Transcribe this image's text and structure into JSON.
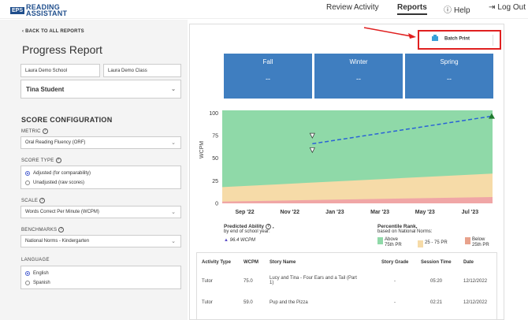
{
  "header": {
    "logo_mark": "EPS",
    "logo_line1": "READING",
    "logo_line2": "ASSISTANT",
    "nav": [
      {
        "label": "Review Activity"
      },
      {
        "label": "Reports"
      },
      {
        "label": "Help"
      },
      {
        "label": "Log Out"
      }
    ]
  },
  "sidebar": {
    "back_link": "BACK TO ALL REPORTS",
    "page_title": "Progress Report",
    "school": "Laura Demo School",
    "class": "Laura Demo Class",
    "student": "Tina Student",
    "section_title": "SCORE CONFIGURATION",
    "metric_label": "METRIC",
    "metric_value": "Oral Reading Fluency (ORF)",
    "score_type_label": "SCORE TYPE",
    "score_type_options": [
      "Adjusted (for comparability)",
      "Unadjusted (raw scores)"
    ],
    "scale_label": "SCALE",
    "scale_value": "Words Correct Per Minute (WCPM)",
    "benchmarks_label": "BENCHMARKS",
    "benchmarks_value": "National Norms - Kindergarten",
    "language_label": "LANGUAGE",
    "language_options": [
      "English",
      "Spanish"
    ]
  },
  "main": {
    "batch_print": "Batch Print",
    "seasons": [
      {
        "name": "Fall",
        "value": "--"
      },
      {
        "name": "Winter",
        "value": "--"
      },
      {
        "name": "Spring",
        "value": "--"
      }
    ],
    "predicted": {
      "title": "Predicted Ability",
      "comma": ",",
      "subtitle": "by end of school year:",
      "value": "96.4 WCPM"
    },
    "percentile": {
      "title": "Percentile Rank,",
      "subtitle": "based on National Norms:",
      "bands": [
        {
          "label_1": "Above",
          "label_2": "75th PR"
        },
        {
          "label_1": "25 - 75 PR",
          "label_2": ""
        },
        {
          "label_1": "Below",
          "label_2": "25th PR"
        }
      ]
    },
    "table": {
      "headers": [
        "Activity Type",
        "WCPM",
        "Story Name",
        "Story Grade",
        "Session Time",
        "Date"
      ],
      "rows": [
        {
          "activity": "Tutor",
          "wcpm": "75.0",
          "story_1": "Lucy and Tina - Four Ears and a Tail (Part",
          "story_2": "1)",
          "grade": "-",
          "time": "05:20",
          "date": "12/12/2022"
        },
        {
          "activity": "Tutor",
          "wcpm": "59.0",
          "story_1": "Pup and the Pizza",
          "story_2": "",
          "grade": "-",
          "time": "02:21",
          "date": "12/12/2022"
        }
      ]
    }
  },
  "colors": {
    "brand": "#1f4e8c",
    "season_blue": "#3f7ec0",
    "above_band": "#8fd9a8",
    "mid_band": "#f6dba8",
    "below_band": "#f0a6a6",
    "trend_line": "#2a62d6",
    "highlight_red": "#e02020"
  },
  "chart_data": {
    "type": "area",
    "ylabel": "WCPM",
    "ylim": [
      0,
      110
    ],
    "y_ticks": [
      "0",
      "25",
      "50",
      "75",
      "100"
    ],
    "x_ticks": [
      "Sep '22",
      "Nov '22",
      "Jan '23",
      "Mar '23",
      "May '23",
      "Jul '23"
    ],
    "bands": [
      {
        "name": "Below 25th PR",
        "upper": [
          2,
          3,
          4,
          5,
          6,
          7
        ]
      },
      {
        "name": "25 - 75 PR",
        "upper": [
          18,
          21,
          24,
          27,
          30,
          33
        ]
      },
      {
        "name": "Above 75th PR",
        "upper": [
          103,
          103,
          103,
          103,
          103,
          103
        ]
      }
    ],
    "observed_points": [
      {
        "x": "Dec '22",
        "y": 75
      },
      {
        "x": "Dec '22",
        "y": 59
      }
    ],
    "trend": {
      "start": {
        "x": "Dec '22",
        "y": 66
      },
      "end": {
        "x": "Aug '23",
        "y": 96.4
      }
    }
  }
}
